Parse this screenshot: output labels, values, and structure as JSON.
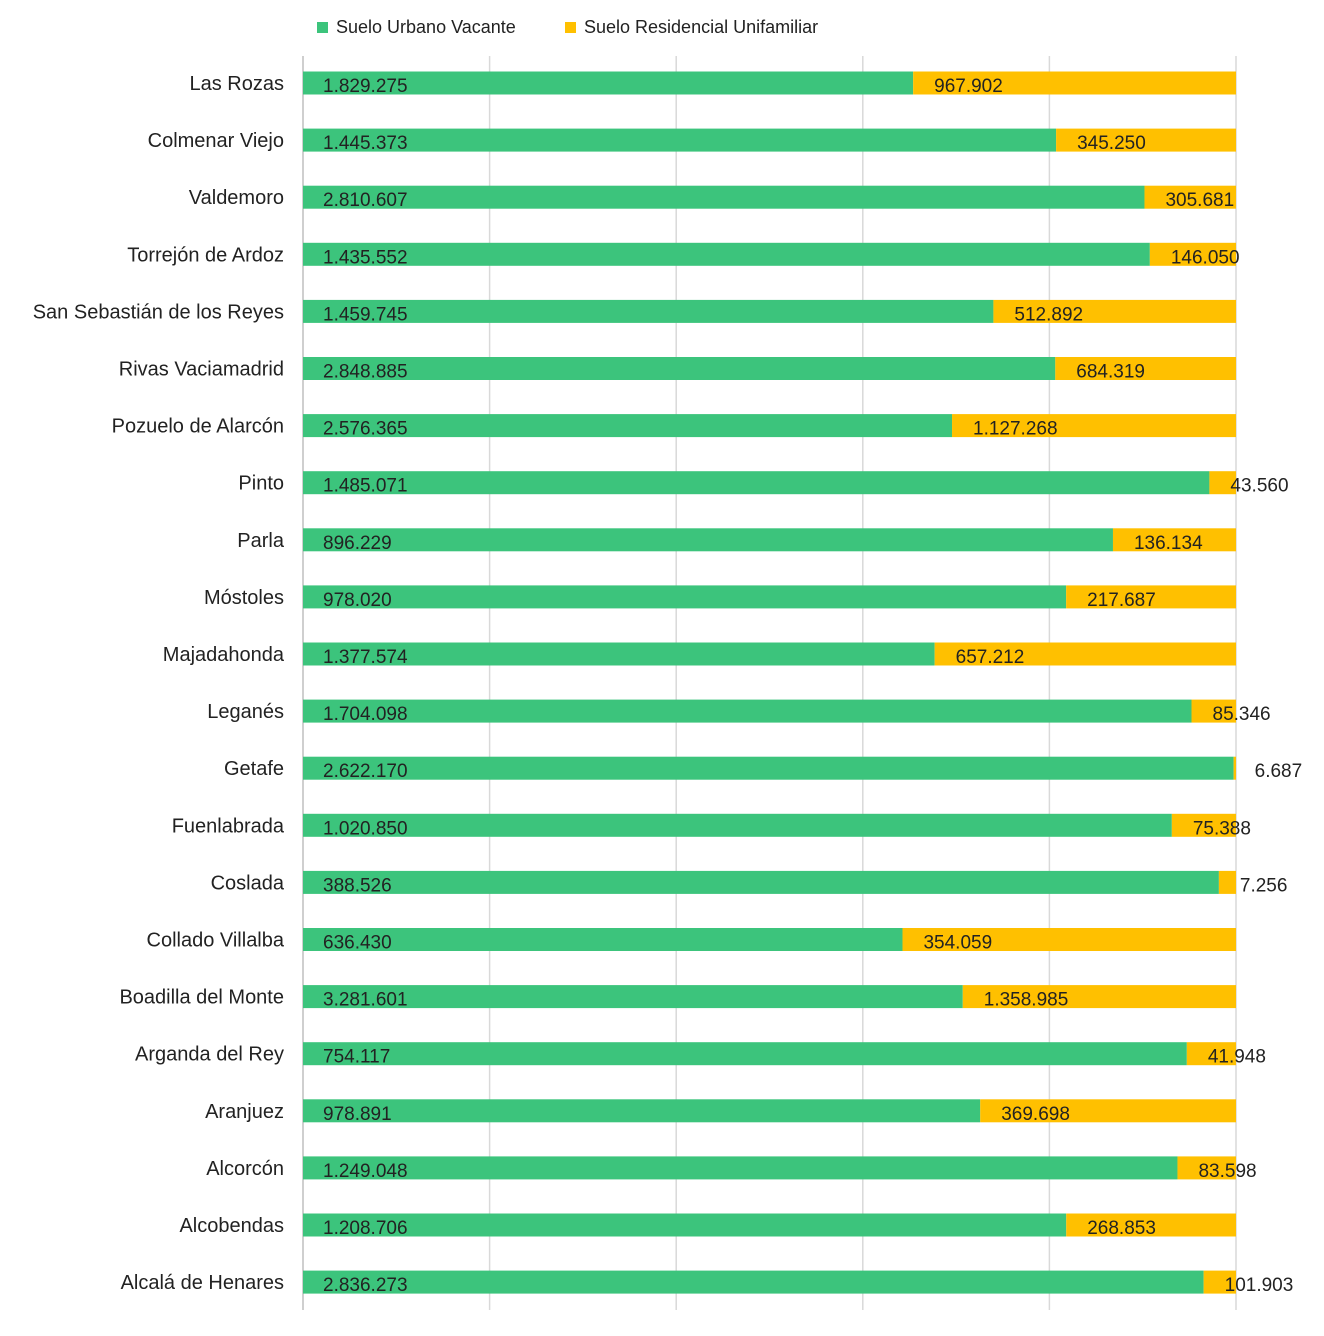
{
  "chart_data": {
    "type": "bar",
    "orientation": "horizontal",
    "stacking": "percent",
    "title": "",
    "xlabel": "",
    "ylabel": "",
    "grid": true,
    "legend_position": "top",
    "categories": [
      "Las Rozas",
      "Colmenar Viejo",
      "Valdemoro",
      "Torrejón de Ardoz",
      "San Sebastián de los Reyes",
      "Rivas Vaciamadrid",
      "Pozuelo de Alarcón",
      "Pinto",
      "Parla",
      "Móstoles",
      "Majadahonda",
      "Leganés",
      "Getafe",
      "Fuenlabrada",
      "Coslada",
      "Collado Villalba",
      "Boadilla del Monte",
      "Arganda del Rey",
      "Aranjuez",
      "Alcorcón",
      "Alcobendas",
      "Alcalá de Henares"
    ],
    "series": [
      {
        "name": "Suelo Urbano Vacante",
        "color": "#3cc47c",
        "values": [
          1829275,
          1445373,
          2810607,
          1435552,
          1459745,
          2848885,
          2576365,
          1485071,
          896229,
          978020,
          1377574,
          1704098,
          2622170,
          1020850,
          388526,
          636430,
          3281601,
          754117,
          978891,
          1249048,
          1208706,
          2836273
        ],
        "labels": [
          "1.829.275",
          "1.445.373",
          "2.810.607",
          "1.435.552",
          "1.459.745",
          "2.848.885",
          "2.576.365",
          "1.485.071",
          "896.229",
          "978.020",
          "1.377.574",
          "1.704.098",
          "2.622.170",
          "1.020.850",
          "388.526",
          "636.430",
          "3.281.601",
          "754.117",
          "978.891",
          "1.249.048",
          "1.208.706",
          "2.836.273"
        ]
      },
      {
        "name": "Suelo Residencial Unifamiliar",
        "color": "#ffc000",
        "values": [
          967902,
          345250,
          305681,
          146050,
          512892,
          684319,
          1127268,
          43560,
          136134,
          217687,
          657212,
          85346,
          6687,
          75388,
          7256,
          354059,
          1358985,
          41948,
          369698,
          83598,
          268853,
          101903
        ],
        "labels": [
          "967.902",
          "345.250",
          "305.681",
          "146.050",
          "512.892",
          "684.319",
          "1.127.268",
          "43.560",
          "136.134",
          "217.687",
          "657.212",
          "85.346",
          "6.687",
          "75.388",
          "7.256",
          "354.059",
          "1.358.985",
          "41.948",
          "369.698",
          "83.598",
          "268.853",
          "101.903"
        ]
      }
    ],
    "gridline_color": "#d9d9d9",
    "axis_color": "#bfbfbf"
  }
}
